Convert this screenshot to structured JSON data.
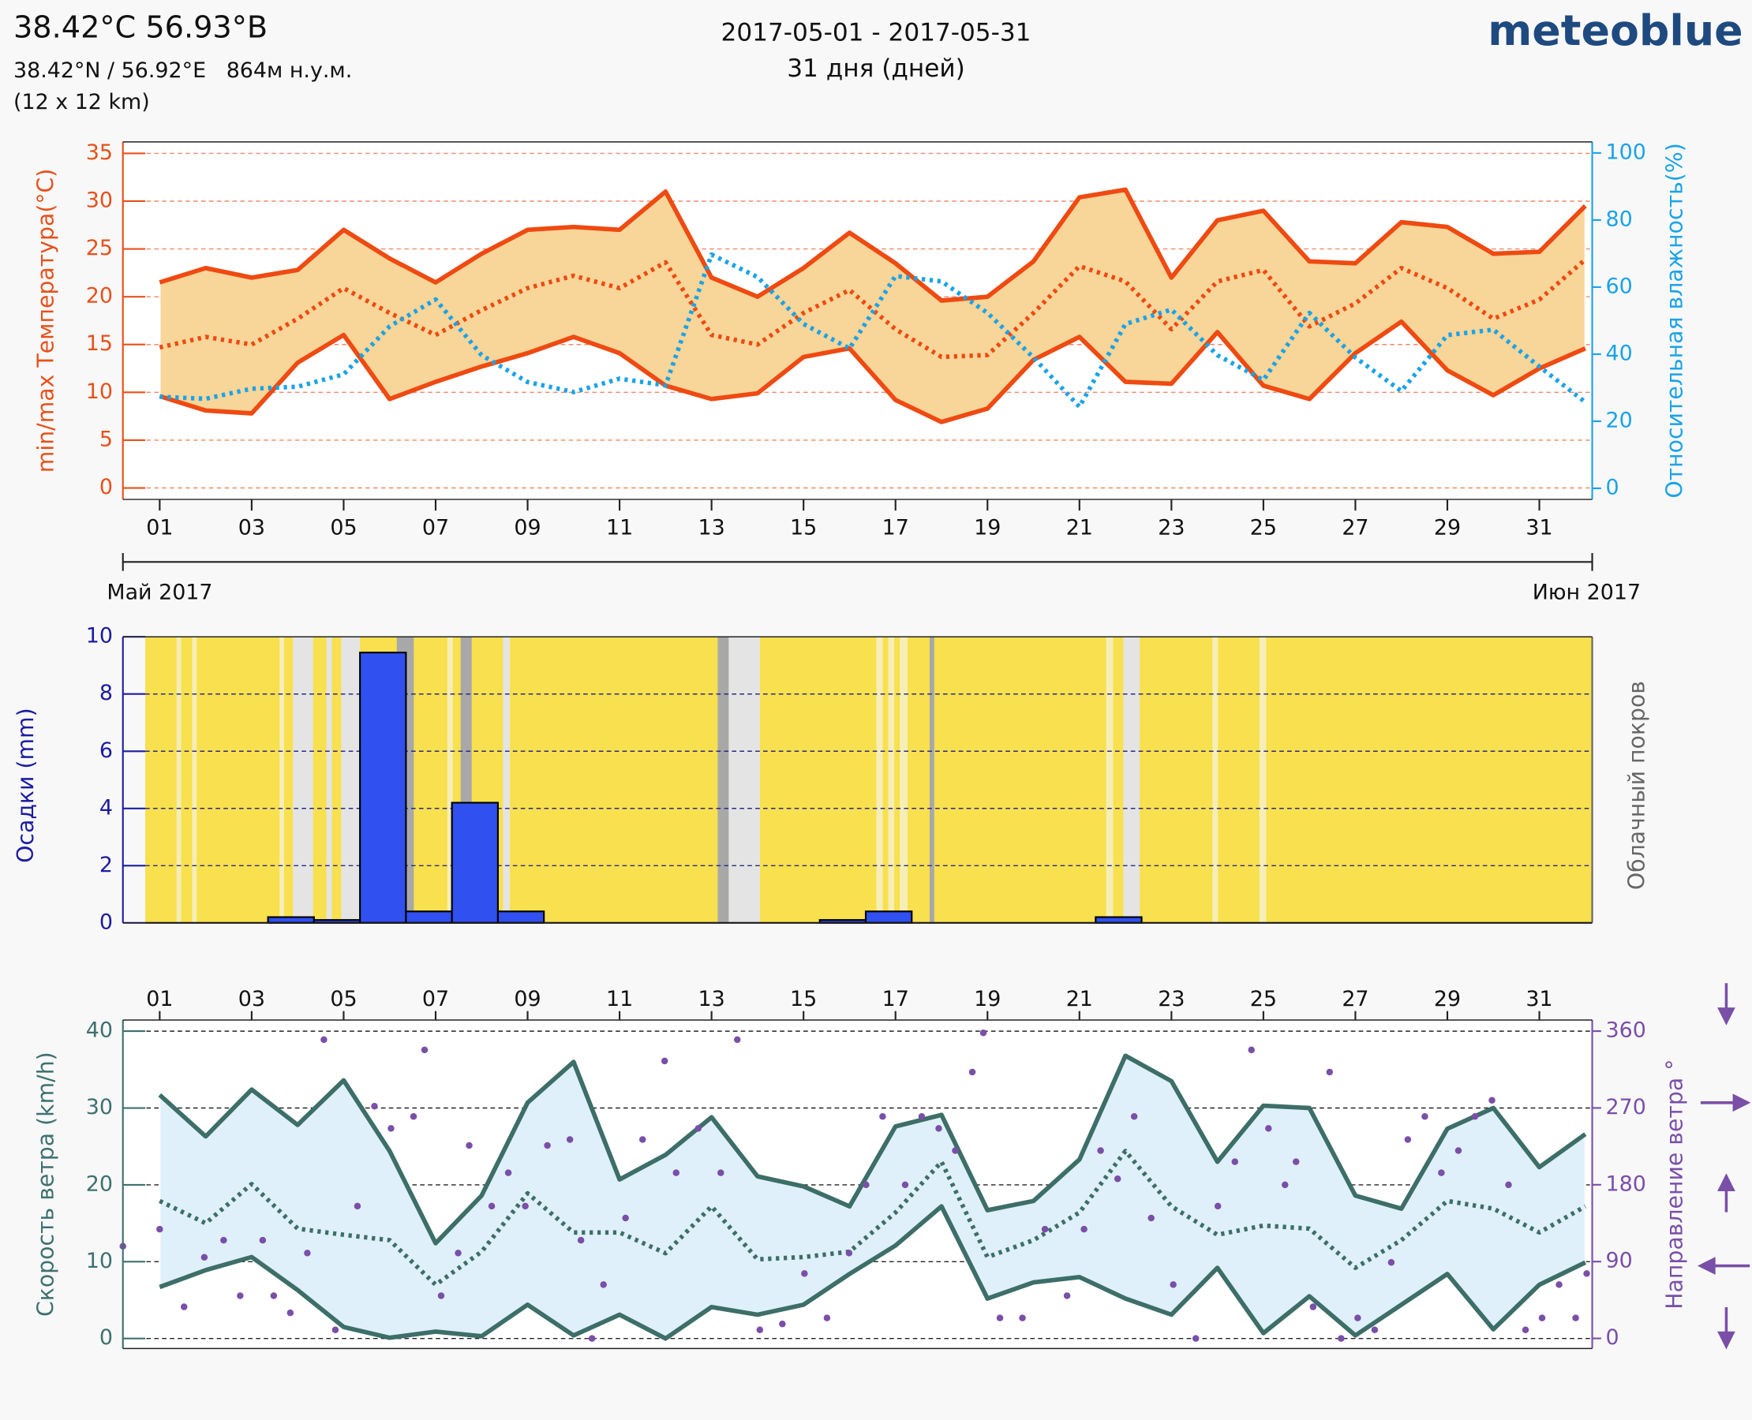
{
  "header": {
    "title": "38.42°C 56.93°В",
    "coords": "38.42°N / 56.92°E   864м н.у.м.",
    "resolution": "(12 x 12 km)",
    "period": "2017-05-01 - 2017-05-31",
    "days": "31 дня (дней)",
    "logo": "meteoblue"
  },
  "chart_data": [
    {
      "type": "line",
      "ylabel": "min/max Температура(°C)",
      "y2label": "Относительная влажность(%)",
      "month_labels": [
        "Май 2017",
        "Июн 2017"
      ],
      "x": [
        1,
        2,
        3,
        4,
        5,
        6,
        7,
        8,
        9,
        10,
        11,
        12,
        13,
        14,
        15,
        16,
        17,
        18,
        19,
        20,
        21,
        22,
        23,
        24,
        25,
        26,
        27,
        28,
        29,
        30,
        31,
        32
      ],
      "xlim": [
        0.2,
        32.15
      ],
      "xticks": [
        {
          "value": 1,
          "label": "01"
        },
        {
          "value": 3,
          "label": "03"
        },
        {
          "value": 5,
          "label": "05"
        },
        {
          "value": 7,
          "label": "07"
        },
        {
          "value": 9,
          "label": "09"
        },
        {
          "value": 11,
          "label": "11"
        },
        {
          "value": 13,
          "label": "13"
        },
        {
          "value": 15,
          "label": "15"
        },
        {
          "value": 17,
          "label": "17"
        },
        {
          "value": 19,
          "label": "19"
        },
        {
          "value": 21,
          "label": "21"
        },
        {
          "value": 23,
          "label": "23"
        },
        {
          "value": 25,
          "label": "25"
        },
        {
          "value": 27,
          "label": "27"
        },
        {
          "value": 29,
          "label": "29"
        },
        {
          "value": 31,
          "label": "31"
        }
      ],
      "ylim": [
        -1.2,
        36.2
      ],
      "yticks": [
        0,
        5,
        10,
        15,
        20,
        25,
        30,
        35
      ],
      "y2lim": [
        -3.3,
        103.3
      ],
      "y2ticks": [
        0,
        20,
        40,
        60,
        80,
        100
      ],
      "grid": true,
      "grid_color": "#f08a6a",
      "ycolor": "#e8501a",
      "y2color": "#1aa3e8",
      "fill_color": "#f8d598",
      "background": "#ffffff",
      "series": [
        {
          "color": "#ee4a12",
          "style": "solid",
          "values": [
            21.5,
            23,
            22,
            22.8,
            27,
            24,
            21.5,
            24.5,
            27,
            27.3,
            27,
            31,
            22,
            20,
            23,
            26.7,
            23.5,
            19.6,
            20,
            23.7,
            30.4,
            31.2,
            22,
            28,
            29,
            23.7,
            23.5,
            27.8,
            27.3,
            24.5,
            24.7,
            29.5
          ]
        },
        {
          "color": "#ee4a12",
          "style": "solid",
          "values": [
            9.6,
            8.1,
            7.8,
            13.1,
            16,
            9.3,
            11.1,
            12.7,
            14.1,
            15.8,
            14.1,
            10.7,
            9.3,
            9.9,
            13.7,
            14.6,
            9.2,
            6.9,
            8.3,
            13.4,
            15.8,
            11.1,
            10.9,
            16.3,
            10.7,
            9.3,
            14.1,
            17.4,
            12.3,
            9.7,
            12.5,
            14.6
          ]
        },
        {
          "color": "#ee4a12",
          "style": "dotted",
          "values": [
            14.7,
            15.8,
            15,
            17.7,
            20.9,
            18.3,
            16,
            18.6,
            20.9,
            22.2,
            20.9,
            23.6,
            16,
            15,
            18.3,
            20.7,
            16.6,
            13.7,
            13.9,
            18.3,
            23.2,
            21.6,
            16.6,
            21.6,
            22.8,
            16.9,
            19.3,
            23,
            20.9,
            17.7,
            19.7,
            23.9
          ]
        },
        {
          "color": "#1aa3e8",
          "style": "dotted",
          "axis": "y2",
          "values": [
            27.3,
            26.7,
            29.7,
            30.3,
            34,
            48.3,
            56.3,
            39.7,
            31.7,
            28.7,
            32.7,
            30.7,
            69.7,
            63,
            49,
            41.7,
            63.3,
            61.7,
            52.3,
            39,
            24.3,
            49,
            53.3,
            39.7,
            32.3,
            52.3,
            39,
            29,
            45.7,
            47.3,
            36.3,
            25.7
          ]
        }
      ]
    },
    {
      "type": "bar",
      "ylabel": "Осадки (mm)",
      "y2label": "Облачный покров",
      "x": [
        1,
        2,
        3,
        4,
        5,
        6,
        7,
        8,
        9,
        10,
        11,
        12,
        13,
        14,
        15,
        16,
        17,
        18,
        19,
        20,
        21,
        22,
        23,
        24,
        25,
        26,
        27,
        28,
        29,
        30,
        31
      ],
      "values": [
        0,
        0,
        0,
        0.2,
        0.1,
        9.45,
        0.4,
        4.2,
        0.4,
        0,
        0,
        0,
        0,
        0,
        0,
        0.1,
        0.4,
        0,
        0,
        0,
        0,
        0.2,
        0,
        0,
        0,
        0,
        0,
        0,
        0,
        0,
        0
      ],
      "xlim": [
        0.83,
        32.3
      ],
      "ylim": [
        0,
        10
      ],
      "yticks": [
        0,
        2,
        4,
        6,
        8,
        10
      ],
      "grid": true,
      "grid_color": "#2a2a80",
      "ycolor": "#1c1ca0",
      "y2color": "#666666",
      "color": "#3050f0",
      "background": "#f8e04e",
      "cloud_cover": {
        "start": [
          1.51,
          1.85,
          3.75,
          4.04,
          4.77,
          5.09,
          6.3,
          7.4,
          7.69,
          8.61,
          13.28,
          13.52,
          16.73,
          16.99,
          17.24,
          17.89,
          21.73,
          22.1,
          24.04,
          25.06
        ],
        "end": [
          1.61,
          1.95,
          3.85,
          4.48,
          4.89,
          5.5,
          6.67,
          7.52,
          7.93,
          8.76,
          13.52,
          14.2,
          16.87,
          17.12,
          17.41,
          17.99,
          21.88,
          22.46,
          24.16,
          25.21
        ],
        "level": [
          20,
          20,
          20,
          60,
          60,
          60,
          90,
          20,
          90,
          60,
          90,
          60,
          20,
          20,
          20,
          90,
          20,
          60,
          20,
          20
        ]
      }
    },
    {
      "type": "line",
      "ylabel": "Скорость ветра (km/h)",
      "y2label": "Направление ветра °",
      "x": [
        1,
        2,
        3,
        4,
        5,
        6,
        7,
        8,
        9,
        10,
        11,
        12,
        13,
        14,
        15,
        16,
        17,
        18,
        19,
        20,
        21,
        22,
        23,
        24,
        25,
        26,
        27,
        28,
        29,
        30,
        31,
        32
      ],
      "xlim": [
        0.2,
        32.15
      ],
      "xticks_top": true,
      "xticks": [
        {
          "value": 1,
          "label": "01"
        },
        {
          "value": 3,
          "label": "03"
        },
        {
          "value": 5,
          "label": "05"
        },
        {
          "value": 7,
          "label": "07"
        },
        {
          "value": 9,
          "label": "09"
        },
        {
          "value": 11,
          "label": "11"
        },
        {
          "value": 13,
          "label": "13"
        },
        {
          "value": 15,
          "label": "15"
        },
        {
          "value": 17,
          "label": "17"
        },
        {
          "value": 19,
          "label": "19"
        },
        {
          "value": 21,
          "label": "21"
        },
        {
          "value": 23,
          "label": "23"
        },
        {
          "value": 25,
          "label": "25"
        },
        {
          "value": 27,
          "label": "27"
        },
        {
          "value": 29,
          "label": "29"
        },
        {
          "value": 31,
          "label": "31"
        }
      ],
      "ylim": [
        -1.3,
        41.45
      ],
      "yticks": [
        0,
        10,
        20,
        30,
        40
      ],
      "y2lim": [
        -11.8,
        373
      ],
      "y2ticks": [
        0,
        90,
        180,
        270,
        360
      ],
      "grid": true,
      "grid_color": "#222222",
      "ycolor": "#3e7070",
      "y2color": "#7a4fa8",
      "fill_color": "#dff0fa",
      "background": "#ffffff",
      "series": [
        {
          "color": "#3d6e68",
          "style": "solid",
          "values": [
            31.7,
            26.3,
            32.4,
            27.8,
            33.6,
            24.4,
            12.4,
            18.6,
            30.7,
            36,
            20.7,
            23.9,
            28.8,
            21.1,
            19.8,
            17.2,
            27.6,
            29.1,
            16.7,
            17.9,
            23.3,
            36.8,
            33.5,
            23,
            30.3,
            30,
            18.6,
            16.9,
            27.3,
            30,
            22.3,
            26.6
          ]
        },
        {
          "color": "#3d6e68",
          "style": "solid",
          "values": [
            6.7,
            8.9,
            10.6,
            6.3,
            1.5,
            0.1,
            0.9,
            0.3,
            4.4,
            0.4,
            3.1,
            0,
            4.1,
            3.1,
            4.4,
            8.4,
            12.1,
            17.2,
            5.2,
            7.3,
            8,
            5.2,
            3.1,
            9.2,
            0.7,
            5.5,
            0.4,
            4.4,
            8.4,
            1.2,
            7,
            9.9
          ]
        },
        {
          "color": "#3d6e68",
          "style": "dotted",
          "values": [
            17.9,
            15,
            20.1,
            14.3,
            13.5,
            12.8,
            7,
            11.3,
            18.9,
            13.8,
            13.8,
            11.1,
            17.2,
            10.3,
            10.6,
            11.3,
            16.4,
            23,
            10.6,
            12.8,
            16.4,
            24.4,
            17.2,
            13.5,
            14.7,
            14.3,
            9.2,
            12.8,
            17.9,
            16.9,
            13.8,
            17.2
          ]
        },
        {
          "color": "#7a4fa8",
          "style": "dots",
          "axis": "y2",
          "x": [
            0.2,
            1,
            1.53,
            1.97,
            2.39,
            2.75,
            3.24,
            3.48,
            3.84,
            4.21,
            4.57,
            4.82,
            5.3,
            5.67,
            6.03,
            6.52,
            6.76,
            7.12,
            7.49,
            7.73,
            8.22,
            8.58,
            8.95,
            9.43,
            9.92,
            10.16,
            10.4,
            10.65,
            11.13,
            11.5,
            11.98,
            12.23,
            12.71,
            13.2,
            13.56,
            14.05,
            14.54,
            15.02,
            15.51,
            15.99,
            16.36,
            16.72,
            17.21,
            17.57,
            17.94,
            18.3,
            18.67,
            18.91,
            19.27,
            19.76,
            20.25,
            20.73,
            21.1,
            21.46,
            21.83,
            22.19,
            22.56,
            23.04,
            23.53,
            24.01,
            24.38,
            24.74,
            25.11,
            25.47,
            25.71,
            26.08,
            26.44,
            26.69,
            27.05,
            27.42,
            27.78,
            28.14,
            28.51,
            28.87,
            29.24,
            29.6,
            29.97,
            30.33,
            30.7,
            31.06,
            31.43,
            31.79,
            32.03
          ],
          "values": [
            108,
            128,
            37,
            95,
            115,
            50,
            115,
            50,
            30,
            100,
            350,
            10,
            155,
            272,
            246,
            260,
            338,
            50,
            100,
            226,
            155,
            194,
            155,
            226,
            233,
            115,
            0,
            63,
            141,
            233,
            325,
            194,
            246,
            194,
            350,
            10,
            17,
            76,
            24,
            100,
            180,
            260,
            180,
            260,
            246,
            220,
            312,
            358,
            24,
            24,
            128,
            50,
            128,
            220,
            187,
            260,
            141,
            63,
            0,
            155,
            207,
            338,
            246,
            180,
            207,
            37,
            312,
            0,
            24,
            10,
            89,
            233,
            260,
            194,
            220,
            260,
            279,
            180,
            10,
            24,
            63,
            24,
            76
          ]
        }
      ]
    }
  ]
}
